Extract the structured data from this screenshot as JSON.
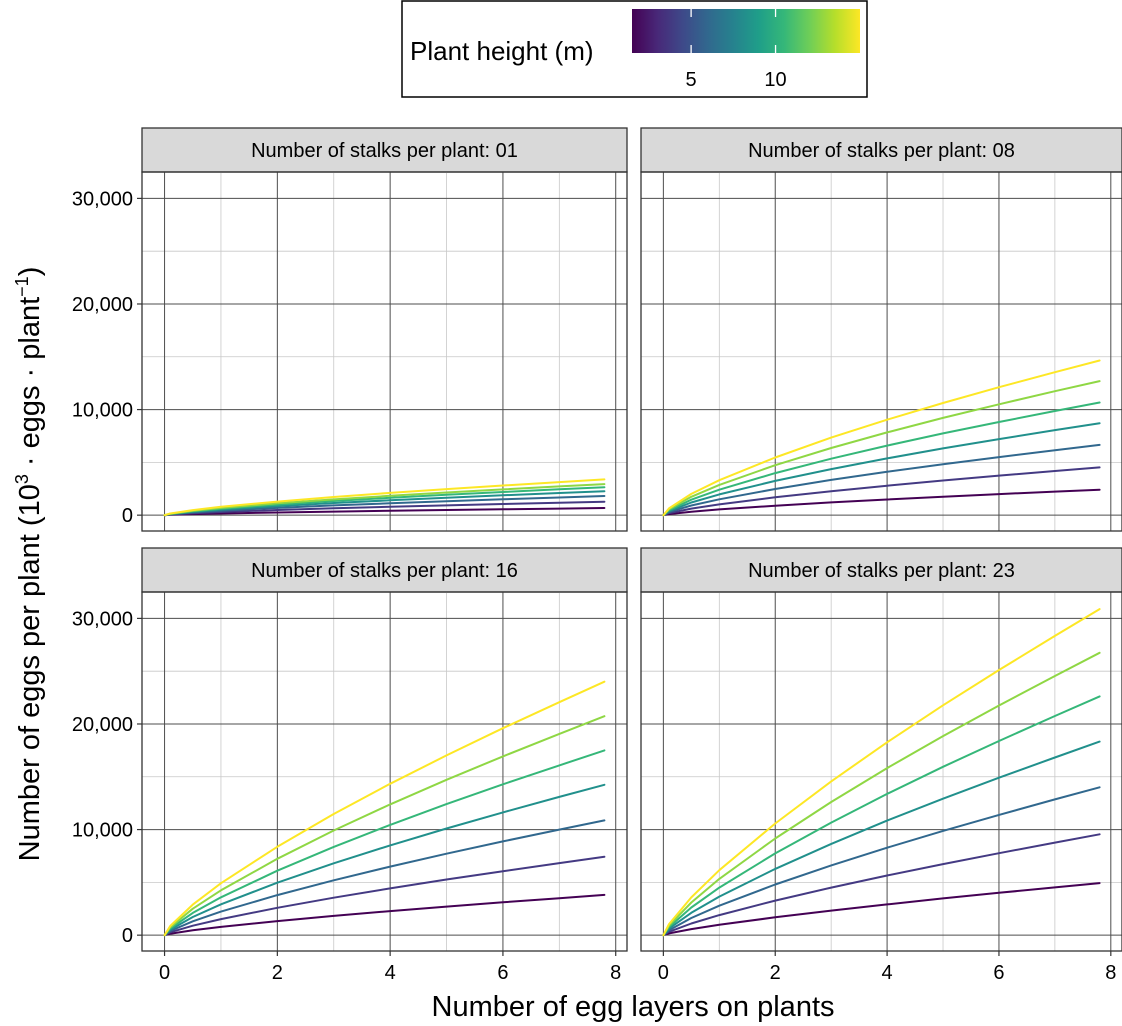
{
  "chart_data": {
    "type": "line",
    "facet_variable_label": "Number of stalks per plant",
    "xlabel": "Number of egg layers on plants",
    "ylabel": {
      "prefix": "Number of eggs per plant (10",
      "sup1": "3",
      "mid": " · eggs · plant",
      "sup2": "−1",
      "suffix": ")"
    },
    "xlim": [
      -0.4,
      8.2
    ],
    "ylim": [
      -1500,
      32500
    ],
    "x_ticks": [
      0,
      2,
      4,
      6,
      8
    ],
    "x_tick_labels": [
      "0",
      "2",
      "4",
      "6",
      "8"
    ],
    "y_ticks": [
      0,
      10000,
      20000,
      30000
    ],
    "y_tick_labels": [
      "0",
      "10,000",
      "20,000",
      "30,000"
    ],
    "grid": true,
    "x_range": [
      0,
      7.8
    ],
    "legend": {
      "title": "Plant height (m)",
      "position": "top",
      "type": "colorbar",
      "colormap": "viridis",
      "range": [
        1.5,
        15.0
      ],
      "ticks": [
        5,
        10
      ],
      "tick_labels": [
        "5",
        "10"
      ],
      "colors": [
        "#440154",
        "#482878",
        "#3e4989",
        "#31688e",
        "#26828e",
        "#1f9e89",
        "#35b779",
        "#6ece58",
        "#b5de2b",
        "#fde725"
      ]
    },
    "series_colors": [
      "#440154",
      "#443a83",
      "#31688e",
      "#21908c",
      "#35b779",
      "#8fd744",
      "#fde725"
    ],
    "panels": [
      {
        "label": "Number of stalks per plant: 01",
        "series": [
          {
            "x": [
              0,
              0.1,
              0.5,
              1,
              2,
              3,
              4,
              5,
              6,
              7,
              7.8
            ],
            "y": [
              0,
              31,
              96,
              157,
              256,
              342,
              419,
              491,
              559,
              624,
              674
            ]
          },
          {
            "x": [
              0,
              0.1,
              0.5,
              1,
              2,
              3,
              4,
              5,
              6,
              7,
              7.8
            ],
            "y": [
              0,
              59,
              182,
              297,
              485,
              647,
              793,
              929,
              1057,
              1180,
              1276
            ]
          },
          {
            "x": [
              0,
              0.1,
              0.5,
              1,
              2,
              3,
              4,
              5,
              6,
              7,
              7.8
            ],
            "y": [
              0,
              84,
              259,
              422,
              689,
              920,
              1127,
              1319,
              1501,
              1676,
              1812
            ]
          },
          {
            "x": [
              0,
              0.1,
              0.5,
              1,
              2,
              3,
              4,
              5,
              6,
              7,
              7.8
            ],
            "y": [
              0,
              105,
              324,
              528,
              861,
              1150,
              1409,
              1649,
              1877,
              2096,
              2266
            ]
          },
          {
            "x": [
              0,
              0.1,
              0.5,
              1,
              2,
              3,
              4,
              5,
              6,
              7,
              7.8
            ],
            "y": [
              0,
              122,
              378,
              616,
              1005,
              1342,
              1644,
              1924,
              2190,
              2445,
              2644
            ]
          },
          {
            "x": [
              0,
              0.1,
              0.5,
              1,
              2,
              3,
              4,
              5,
              6,
              7,
              7.8
            ],
            "y": [
              0,
              136,
              421,
              686,
              1119,
              1495,
              1831,
              2143,
              2439,
              2723,
              2945
            ]
          },
          {
            "x": [
              0,
              0.1,
              0.5,
              1,
              2,
              3,
              4,
              5,
              6,
              7,
              7.8
            ],
            "y": [
              0,
              157,
              484,
              789,
              1288,
              1720,
              2107,
              2466,
              2806,
              3133,
              3388
            ]
          }
        ]
      },
      {
        "label": "Number of stalks per plant: 08",
        "series": [
          {
            "x": [
              0,
              0.1,
              0.5,
              1,
              2,
              3,
              4,
              5,
              6,
              7,
              7.8
            ],
            "y": [
              0,
              105,
              330,
              545,
              898,
              1208,
              1488,
              1748,
              1993,
              2228,
              2410
            ]
          },
          {
            "x": [
              0,
              0.1,
              0.5,
              1,
              2,
              3,
              4,
              5,
              6,
              7,
              7.8
            ],
            "y": [
              0,
              197,
              621,
              1023,
              1688,
              2268,
              2794,
              3283,
              3744,
              4183,
              4526
            ]
          },
          {
            "x": [
              0,
              0.1,
              0.5,
              1,
              2,
              3,
              4,
              5,
              6,
              7,
              7.8
            ],
            "y": [
              0,
              290,
              913,
              1504,
              2481,
              3335,
              4108,
              4826,
              5503,
              6149,
              6653
            ]
          },
          {
            "x": [
              0,
              0.1,
              0.5,
              1,
              2,
              3,
              4,
              5,
              6,
              7,
              7.8
            ],
            "y": [
              0,
              379,
              1195,
              1969,
              3249,
              4367,
              5379,
              6319,
              7206,
              8052,
              8712
            ]
          },
          {
            "x": [
              0,
              0.1,
              0.5,
              1,
              2,
              3,
              4,
              5,
              6,
              7,
              7.8
            ],
            "y": [
              0,
              465,
              1464,
              2412,
              3980,
              5349,
              6589,
              7741,
              8827,
              9863,
              10672
            ]
          },
          {
            "x": [
              0,
              0.1,
              0.5,
              1,
              2,
              3,
              4,
              5,
              6,
              7,
              7.8
            ],
            "y": [
              0,
              553,
              1742,
              2870,
              4735,
              6365,
              7840,
              9211,
              10503,
              11736,
              12698
            ]
          },
          {
            "x": [
              0,
              0.1,
              0.5,
              1,
              2,
              3,
              4,
              5,
              6,
              7,
              7.8
            ],
            "y": [
              0,
              638,
              2010,
              3311,
              5463,
              7343,
              9045,
              10626,
              12117,
              13539,
              14649
            ]
          }
        ]
      },
      {
        "label": "Number of stalks per plant: 16",
        "series": [
          {
            "x": [
              0,
              0.1,
              0.5,
              1,
              2,
              3,
              4,
              5,
              6,
              7,
              7.8
            ],
            "y": [
              0,
              137,
              460,
              782,
              1330,
              1822,
              2277,
              2705,
              3113,
              3505,
              3813
            ]
          },
          {
            "x": [
              0,
              0.1,
              0.5,
              1,
              2,
              3,
              4,
              5,
              6,
              7,
              7.8
            ],
            "y": [
              0,
              268,
              896,
              1522,
              2589,
              3548,
              4433,
              5267,
              6061,
              6824,
              7424
            ]
          },
          {
            "x": [
              0,
              0.1,
              0.5,
              1,
              2,
              3,
              4,
              5,
              6,
              7,
              7.8
            ],
            "y": [
              0,
              392,
              1312,
              2229,
              3792,
              5196,
              6492,
              7713,
              8877,
              9994,
              10872
            ]
          },
          {
            "x": [
              0,
              0.1,
              0.5,
              1,
              2,
              3,
              4,
              5,
              6,
              7,
              7.8
            ],
            "y": [
              0,
              514,
              1719,
              2920,
              4968,
              6807,
              8505,
              10104,
              11629,
              13092,
              14242
            ]
          },
          {
            "x": [
              0,
              0.1,
              0.5,
              1,
              2,
              3,
              4,
              5,
              6,
              7,
              7.8
            ],
            "y": [
              0,
              631,
              2111,
              3587,
              6102,
              8361,
              10447,
              12411,
              14284,
              16081,
              17494
            ]
          },
          {
            "x": [
              0,
              0.1,
              0.5,
              1,
              2,
              3,
              4,
              5,
              6,
              7,
              7.8
            ],
            "y": [
              0,
              748,
              2503,
              4252,
              7233,
              9911,
              12383,
              14712,
              16932,
              19062,
              20737
            ]
          },
          {
            "x": [
              0,
              0.1,
              0.5,
              1,
              2,
              3,
              4,
              5,
              6,
              7,
              7.8
            ],
            "y": [
              0,
              866,
              2897,
              4922,
              8372,
              11472,
              14333,
              17029,
              19599,
              22064,
              24003
            ]
          }
        ]
      },
      {
        "label": "Number of stalks per plant: 23",
        "series": [
          {
            "x": [
              0,
              0.1,
              0.5,
              1,
              2,
              3,
              4,
              5,
              6,
              7,
              7.8
            ],
            "y": [
              0,
              167,
              571,
              982,
              1688,
              2326,
              2918,
              3477,
              4012,
              4527,
              4932
            ]
          },
          {
            "x": [
              0,
              0.1,
              0.5,
              1,
              2,
              3,
              4,
              5,
              6,
              7,
              7.8
            ],
            "y": [
              0,
              323,
              1105,
              1901,
              3269,
              4503,
              5649,
              6732,
              7767,
              8764,
              9548
            ]
          },
          {
            "x": [
              0,
              0.1,
              0.5,
              1,
              2,
              3,
              4,
              5,
              6,
              7,
              7.8
            ],
            "y": [
              0,
              473,
              1621,
              2790,
              4796,
              6607,
              8288,
              9876,
              11394,
              12857,
              14007
            ]
          },
          {
            "x": [
              0,
              0.1,
              0.5,
              1,
              2,
              3,
              4,
              5,
              6,
              7,
              7.8
            ],
            "y": [
              0,
              619,
              2122,
              3651,
              6277,
              8647,
              10847,
              12926,
              14912,
              16827,
              18331
            ]
          },
          {
            "x": [
              0,
              0.1,
              0.5,
              1,
              2,
              3,
              4,
              5,
              6,
              7,
              7.8
            ],
            "y": [
              0,
              764,
              2617,
              4503,
              7742,
              10664,
              13378,
              15942,
              18392,
              20753,
              22609
            ]
          },
          {
            "x": [
              0,
              0.1,
              0.5,
              1,
              2,
              3,
              4,
              5,
              6,
              7,
              7.8
            ],
            "y": [
              0,
              903,
              3095,
              5325,
              9155,
              12612,
              15821,
              18853,
              21751,
              24543,
              26738
            ]
          },
          {
            "x": [
              0,
              0.1,
              0.5,
              1,
              2,
              3,
              4,
              5,
              6,
              7,
              7.8
            ],
            "y": [
              0,
              1043,
              3574,
              6149,
              10572,
              14563,
              18269,
              21771,
              25117,
              28341,
              30876
            ]
          }
        ]
      }
    ]
  }
}
